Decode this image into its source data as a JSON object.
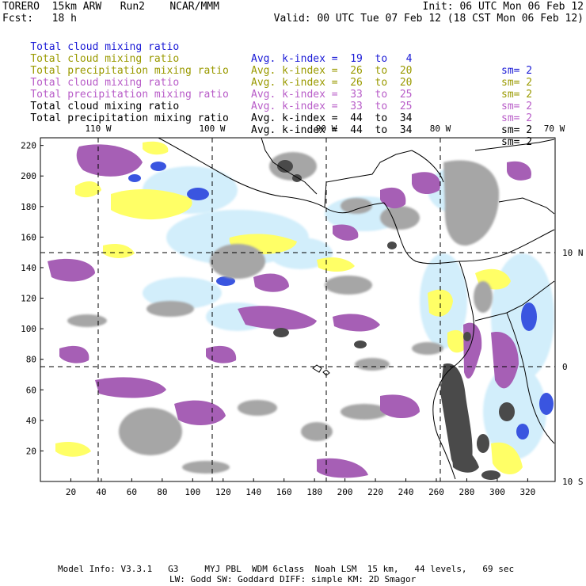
{
  "header": {
    "left1": "TORERO  15km ARW   Run2    NCAR/MMM",
    "left2": "Fcst:   18 h",
    "init": "Init: 06 UTC Mon 06 Feb 12",
    "valid": "Valid: 00 UTC Tue 07 Feb 12 (18 CST Mon 06 Feb 12)"
  },
  "legend": [
    {
      "name": "Total cloud mixing ratio",
      "k": "Avg. k-index =  19  to   4",
      "sm": "sm= 2",
      "color": "#1a1ad6"
    },
    {
      "name": "Total cloud mixing ratio",
      "k": "Avg. k-index =  26  to  20",
      "sm": "sm= 2",
      "color": "#9a9a00"
    },
    {
      "name": "Total precipitation mixing ratio",
      "k": "Avg. k-index =  26  to  20",
      "sm": "sm= 2",
      "color": "#9a9a00"
    },
    {
      "name": "Total cloud mixing ratio",
      "k": "Avg. k-index =  33  to  25",
      "sm": "sm= 2",
      "color": "#b85cc8"
    },
    {
      "name": "Total precipitation mixing ratio",
      "k": "Avg. k-index =  33  to  25",
      "sm": "sm= 2",
      "color": "#b85cc8"
    },
    {
      "name": "Total cloud mixing ratio",
      "k": "Avg. k-index =  44  to  34",
      "sm": "sm= 2",
      "color": "#000000"
    },
    {
      "name": "Total precipitation mixing ratio",
      "k": "Avg. k-index =  44  to  34",
      "sm": "sm= 2",
      "color": "#000000"
    }
  ],
  "axes": {
    "lon_labels": [
      "110 W",
      "100 W",
      "90 W",
      "80 W",
      "70 W"
    ],
    "lat_labels": [
      "10 N",
      "0",
      "10 S"
    ],
    "x_ticks": [
      "20",
      "40",
      "60",
      "80",
      "100",
      "120",
      "140",
      "160",
      "180",
      "200",
      "220",
      "240",
      "260",
      "280",
      "300",
      "320"
    ],
    "y_ticks": [
      "220",
      "200",
      "180",
      "160",
      "140",
      "120",
      "100",
      "80",
      "60",
      "40",
      "20"
    ]
  },
  "footer": {
    "line1": "Model Info: V3.3.1   G3     MYJ PBL  WDM 6class  Noah LSM  15 km,   44 levels,   69 sec",
    "line2": "LW: Godd SW: Goddard DIFF: simple KM: 2D Smagor"
  },
  "colors": {
    "gray": "#a6a6a6",
    "dark_gray": "#4a4a4a",
    "purple": "#a65fb5",
    "yellow": "#ffff66",
    "light_blue": "#cfeefc",
    "blue": "#3a55e0"
  }
}
